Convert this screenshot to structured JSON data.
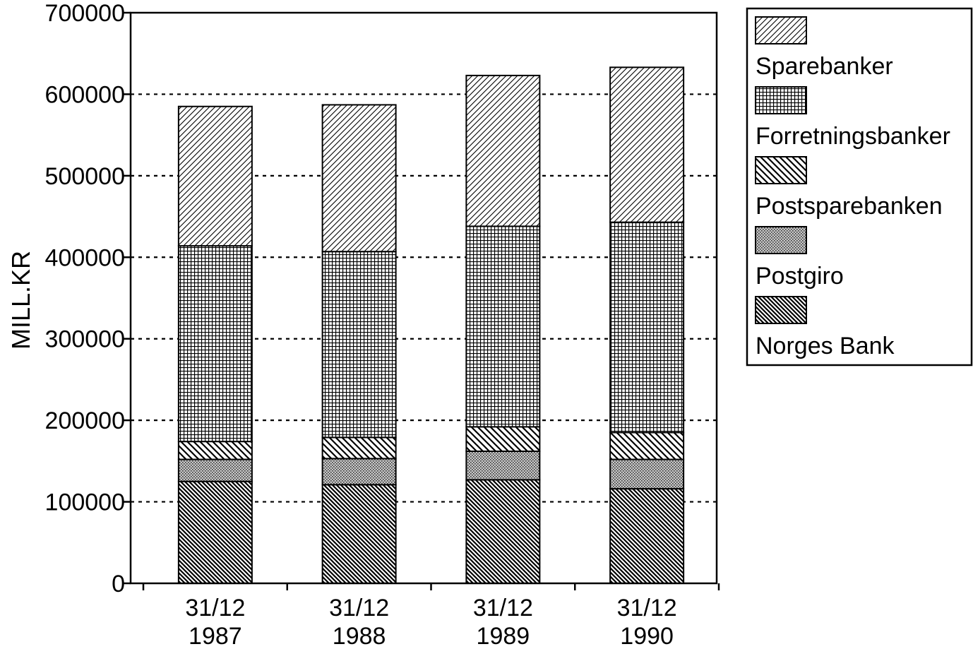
{
  "chart_data": {
    "type": "bar",
    "stacked": true,
    "title": "",
    "xlabel": "",
    "ylabel": "MILL.KR",
    "ylim": [
      0,
      700000
    ],
    "yticks": [
      0,
      100000,
      200000,
      300000,
      400000,
      500000,
      600000,
      700000
    ],
    "grid": "horizontal dashed",
    "legend_position": "top-right, outside plot",
    "categories": [
      {
        "line1": "31/12",
        "line2": "1987"
      },
      {
        "line1": "31/12",
        "line2": "1988"
      },
      {
        "line1": "31/12",
        "line2": "1989"
      },
      {
        "line1": "31/12",
        "line2": "1990"
      }
    ],
    "series": [
      {
        "name": "Norges Bank",
        "pattern": "dense-backslash-hatch",
        "values": [
          125000,
          121000,
          127000,
          116000
        ]
      },
      {
        "name": "Postgiro",
        "pattern": "dotted-crosshatch",
        "values": [
          27000,
          32000,
          35000,
          36000
        ]
      },
      {
        "name": "Postsparebanken",
        "pattern": "backslash-hatch",
        "values": [
          22000,
          26000,
          30000,
          33000
        ]
      },
      {
        "name": "Forretningsbanker",
        "pattern": "grid",
        "values": [
          240000,
          228000,
          246000,
          258000
        ]
      },
      {
        "name": "Sparebanker",
        "pattern": "forward-slash-hatch",
        "values": [
          171000,
          180000,
          185000,
          190000
        ]
      }
    ],
    "legend_order": [
      "Sparebanker",
      "Forretningsbanker",
      "Postsparebanken",
      "Postgiro",
      "Norges Bank"
    ]
  }
}
